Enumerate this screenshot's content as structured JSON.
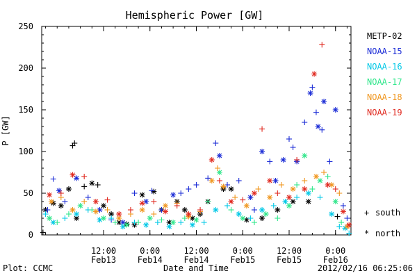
{
  "chart_data": {
    "type": "scatter",
    "title": "Hemispheric Power [GW]",
    "xlabel": "Date and Time",
    "ylabel": "P [GW]",
    "ylim": [
      0,
      250
    ],
    "xlim": [
      "2012-02-12 20:00",
      "2012-02-16 04:00"
    ],
    "y_ticks": [
      0,
      50,
      100,
      150,
      200,
      250
    ],
    "x_ticks": [
      {
        "time": "2012-02-13 12:00",
        "line1": "12:00",
        "line2": "Feb13"
      },
      {
        "time": "2012-02-14 00:00",
        "line1": "0:00",
        "line2": "Feb14"
      },
      {
        "time": "2012-02-14 12:00",
        "line1": "12:00",
        "line2": "Feb14"
      },
      {
        "time": "2012-02-15 00:00",
        "line1": "0:00",
        "line2": "Feb15"
      },
      {
        "time": "2012-02-15 12:00",
        "line1": "12:00",
        "line2": "Feb15"
      },
      {
        "time": "2012-02-16 00:00",
        "line1": "0:00",
        "line2": "Feb16"
      }
    ],
    "markers": {
      "plus": "south",
      "star": "north"
    },
    "legend_position": "right",
    "series": [
      {
        "name": "METP-02",
        "color": "#000000",
        "points": [
          [
            "2012-02-12 20:20",
            3,
            "plus"
          ],
          [
            "2012-02-12 21:00",
            30,
            "star"
          ],
          [
            "2012-02-12 23:00",
            38,
            "star"
          ],
          [
            "2012-02-13 01:00",
            35,
            "star"
          ],
          [
            "2012-02-13 03:00",
            55,
            "star"
          ],
          [
            "2012-02-13 04:00",
            107,
            "plus"
          ],
          [
            "2012-02-13 04:30",
            110,
            "plus"
          ],
          [
            "2012-02-13 05:00",
            20,
            "star"
          ],
          [
            "2012-02-13 07:00",
            58,
            "plus"
          ],
          [
            "2012-02-13 09:00",
            62,
            "star"
          ],
          [
            "2012-02-13 10:30",
            60,
            "plus"
          ],
          [
            "2012-02-13 12:00",
            35,
            "star"
          ],
          [
            "2012-02-13 14:00",
            25,
            "star"
          ],
          [
            "2012-02-13 16:00",
            15,
            "star"
          ],
          [
            "2012-02-13 18:00",
            13,
            "star"
          ],
          [
            "2012-02-13 20:00",
            12,
            "star"
          ],
          [
            "2012-02-13 22:00",
            48,
            "star"
          ],
          [
            "2012-02-14 01:00",
            52,
            "star"
          ],
          [
            "2012-02-14 03:00",
            30,
            "star"
          ],
          [
            "2012-02-14 05:00",
            15,
            "star"
          ],
          [
            "2012-02-14 07:00",
            40,
            "star"
          ],
          [
            "2012-02-14 09:00",
            30,
            "star"
          ],
          [
            "2012-02-14 11:00",
            20,
            "star"
          ],
          [
            "2012-02-14 13:00",
            25,
            "star"
          ],
          [
            "2012-02-14 15:00",
            40,
            "star"
          ],
          [
            "2012-02-14 19:00",
            55,
            "star"
          ],
          [
            "2012-02-14 21:00",
            55,
            "star"
          ],
          [
            "2012-02-15 01:00",
            18,
            "star"
          ],
          [
            "2012-02-15 05:00",
            20,
            "star"
          ],
          [
            "2012-02-15 09:00",
            30,
            "star"
          ],
          [
            "2012-02-15 13:00",
            40,
            "star"
          ],
          [
            "2012-02-15 17:00",
            40,
            "star"
          ],
          [
            "2012-02-16 00:30",
            22,
            "plus"
          ]
        ]
      },
      {
        "name": "NOAA-15",
        "color": "#1a2bd6",
        "points": [
          [
            "2012-02-12 21:30",
            30,
            "plus"
          ],
          [
            "2012-02-12 23:00",
            67,
            "plus"
          ],
          [
            "2012-02-13 00:30",
            53,
            "star"
          ],
          [
            "2012-02-13 02:00",
            40,
            "plus"
          ],
          [
            "2012-02-13 05:00",
            68,
            "star"
          ],
          [
            "2012-02-13 08:00",
            45,
            "plus"
          ],
          [
            "2012-02-13 11:00",
            30,
            "star"
          ],
          [
            "2012-02-13 14:00",
            18,
            "plus"
          ],
          [
            "2012-02-13 17:00",
            15,
            "star"
          ],
          [
            "2012-02-13 20:00",
            50,
            "plus"
          ],
          [
            "2012-02-13 23:00",
            40,
            "star"
          ],
          [
            "2012-02-14 00:30",
            53,
            "plus"
          ],
          [
            "2012-02-14 03:00",
            30,
            "plus"
          ],
          [
            "2012-02-14 06:00",
            48,
            "star"
          ],
          [
            "2012-02-14 08:00",
            50,
            "plus"
          ],
          [
            "2012-02-14 10:00",
            55,
            "plus"
          ],
          [
            "2012-02-14 12:00",
            60,
            "plus"
          ],
          [
            "2012-02-14 15:00",
            68,
            "plus"
          ],
          [
            "2012-02-14 17:00",
            110,
            "plus"
          ],
          [
            "2012-02-14 18:00",
            95,
            "star"
          ],
          [
            "2012-02-14 20:00",
            60,
            "plus"
          ],
          [
            "2012-02-14 23:00",
            65,
            "plus"
          ],
          [
            "2012-02-15 02:00",
            45,
            "star"
          ],
          [
            "2012-02-15 03:00",
            30,
            "plus"
          ],
          [
            "2012-02-15 05:00",
            100,
            "star"
          ],
          [
            "2012-02-15 07:00",
            88,
            "plus"
          ],
          [
            "2012-02-15 08:30",
            65,
            "star"
          ],
          [
            "2012-02-15 10:30",
            90,
            "star"
          ],
          [
            "2012-02-15 12:00",
            115,
            "plus"
          ],
          [
            "2012-02-15 13:00",
            105,
            "plus"
          ],
          [
            "2012-02-15 14:00",
            88,
            "star"
          ],
          [
            "2012-02-15 16:00",
            135,
            "plus"
          ],
          [
            "2012-02-15 17:30",
            170,
            "star"
          ],
          [
            "2012-02-15 18:00",
            177,
            "plus"
          ],
          [
            "2012-02-15 19:00",
            147,
            "plus"
          ],
          [
            "2012-02-15 19:30",
            130,
            "star"
          ],
          [
            "2012-02-15 20:30",
            126,
            "plus"
          ],
          [
            "2012-02-15 21:00",
            160,
            "star"
          ],
          [
            "2012-02-15 22:30",
            88,
            "plus"
          ],
          [
            "2012-02-16 00:00",
            150,
            "star"
          ],
          [
            "2012-02-16 02:00",
            35,
            "plus"
          ],
          [
            "2012-02-16 03:00",
            20,
            "plus"
          ]
        ]
      },
      {
        "name": "NOAA-16",
        "color": "#00c8e6",
        "points": [
          [
            "2012-02-12 21:00",
            25,
            "plus"
          ],
          [
            "2012-02-12 23:00",
            15,
            "star"
          ],
          [
            "2012-02-13 02:00",
            20,
            "plus"
          ],
          [
            "2012-02-13 05:00",
            25,
            "star"
          ],
          [
            "2012-02-13 08:00",
            30,
            "plus"
          ],
          [
            "2012-02-13 11:00",
            18,
            "star"
          ],
          [
            "2012-02-13 14:00",
            20,
            "plus"
          ],
          [
            "2012-02-13 17:00",
            10,
            "star"
          ],
          [
            "2012-02-13 20:00",
            15,
            "plus"
          ],
          [
            "2012-02-13 23:00",
            12,
            "star"
          ],
          [
            "2012-02-14 02:00",
            15,
            "plus"
          ],
          [
            "2012-02-14 05:00",
            10,
            "star"
          ],
          [
            "2012-02-14 08:00",
            15,
            "plus"
          ],
          [
            "2012-02-14 11:00",
            12,
            "star"
          ],
          [
            "2012-02-14 14:00",
            15,
            "plus"
          ],
          [
            "2012-02-14 17:00",
            30,
            "star"
          ],
          [
            "2012-02-14 20:00",
            35,
            "plus"
          ],
          [
            "2012-02-14 23:00",
            25,
            "star"
          ],
          [
            "2012-02-15 02:00",
            20,
            "plus"
          ],
          [
            "2012-02-15 05:00",
            30,
            "star"
          ],
          [
            "2012-02-15 08:00",
            35,
            "plus"
          ],
          [
            "2012-02-15 11:00",
            40,
            "star"
          ],
          [
            "2012-02-15 14:00",
            45,
            "plus"
          ],
          [
            "2012-02-15 17:00",
            50,
            "star"
          ],
          [
            "2012-02-15 20:00",
            45,
            "plus"
          ],
          [
            "2012-02-15 23:00",
            25,
            "star"
          ],
          [
            "2012-02-16 01:00",
            10,
            "plus"
          ],
          [
            "2012-02-16 02:30",
            8,
            "star"
          ],
          [
            "2012-02-16 03:30",
            2,
            "plus"
          ]
        ]
      },
      {
        "name": "NOAA-17",
        "color": "#2ee68a",
        "points": [
          [
            "2012-02-12 22:00",
            20,
            "star"
          ],
          [
            "2012-02-13 00:00",
            15,
            "plus"
          ],
          [
            "2012-02-13 03:00",
            25,
            "plus"
          ],
          [
            "2012-02-13 06:00",
            35,
            "star"
          ],
          [
            "2012-02-13 09:00",
            30,
            "plus"
          ],
          [
            "2012-02-13 12:00",
            20,
            "star"
          ],
          [
            "2012-02-13 15:00",
            15,
            "plus"
          ],
          [
            "2012-02-13 18:00",
            12,
            "star"
          ],
          [
            "2012-02-13 21:00",
            15,
            "plus"
          ],
          [
            "2012-02-14 00:00",
            20,
            "star"
          ],
          [
            "2012-02-14 03:00",
            18,
            "plus"
          ],
          [
            "2012-02-14 06:00",
            15,
            "star"
          ],
          [
            "2012-02-14 09:00",
            20,
            "plus"
          ],
          [
            "2012-02-14 12:00",
            18,
            "star"
          ],
          [
            "2012-02-14 15:00",
            40,
            "plus"
          ],
          [
            "2012-02-14 18:00",
            75,
            "star"
          ],
          [
            "2012-02-14 21:00",
            30,
            "plus"
          ],
          [
            "2012-02-15 00:00",
            20,
            "star"
          ],
          [
            "2012-02-15 03:00",
            15,
            "plus"
          ],
          [
            "2012-02-15 06:00",
            25,
            "star"
          ],
          [
            "2012-02-15 09:00",
            20,
            "plus"
          ],
          [
            "2012-02-15 12:00",
            35,
            "star"
          ],
          [
            "2012-02-15 14:00",
            60,
            "plus"
          ],
          [
            "2012-02-15 16:00",
            95,
            "star"
          ],
          [
            "2012-02-15 18:00",
            55,
            "plus"
          ],
          [
            "2012-02-15 20:00",
            65,
            "star"
          ],
          [
            "2012-02-15 22:00",
            70,
            "plus"
          ],
          [
            "2012-02-16 00:00",
            40,
            "star"
          ],
          [
            "2012-02-16 01:30",
            15,
            "plus"
          ]
        ]
      },
      {
        "name": "NOAA-18",
        "color": "#f0961e",
        "points": [
          [
            "2012-02-12 22:30",
            40,
            "star"
          ],
          [
            "2012-02-13 01:00",
            45,
            "plus"
          ],
          [
            "2012-02-13 04:00",
            30,
            "star"
          ],
          [
            "2012-02-13 07:00",
            40,
            "plus"
          ],
          [
            "2012-02-13 10:00",
            28,
            "star"
          ],
          [
            "2012-02-13 13:00",
            30,
            "plus"
          ],
          [
            "2012-02-13 16:00",
            20,
            "star"
          ],
          [
            "2012-02-13 19:00",
            25,
            "plus"
          ],
          [
            "2012-02-13 22:00",
            30,
            "star"
          ],
          [
            "2012-02-14 01:00",
            25,
            "plus"
          ],
          [
            "2012-02-14 04:00",
            35,
            "star"
          ],
          [
            "2012-02-14 07:00",
            38,
            "plus"
          ],
          [
            "2012-02-14 10:00",
            22,
            "star"
          ],
          [
            "2012-02-14 13:00",
            28,
            "plus"
          ],
          [
            "2012-02-14 16:00",
            65,
            "star"
          ],
          [
            "2012-02-14 17:30",
            80,
            "plus"
          ],
          [
            "2012-02-14 19:00",
            58,
            "star"
          ],
          [
            "2012-02-14 22:00",
            45,
            "plus"
          ],
          [
            "2012-02-15 01:00",
            35,
            "star"
          ],
          [
            "2012-02-15 04:00",
            55,
            "plus"
          ],
          [
            "2012-02-15 07:00",
            45,
            "star"
          ],
          [
            "2012-02-15 10:00",
            60,
            "plus"
          ],
          [
            "2012-02-15 13:00",
            55,
            "star"
          ],
          [
            "2012-02-15 16:00",
            65,
            "plus"
          ],
          [
            "2012-02-15 19:00",
            70,
            "star"
          ],
          [
            "2012-02-15 21:00",
            75,
            "plus"
          ],
          [
            "2012-02-15 23:00",
            60,
            "star"
          ],
          [
            "2012-02-16 01:00",
            50,
            "plus"
          ],
          [
            "2012-02-16 03:00",
            10,
            "star"
          ]
        ]
      },
      {
        "name": "NOAA-19",
        "color": "#e0281e",
        "points": [
          [
            "2012-02-12 22:00",
            48,
            "star"
          ],
          [
            "2012-02-13 01:00",
            50,
            "plus"
          ],
          [
            "2012-02-13 04:00",
            72,
            "star"
          ],
          [
            "2012-02-13 07:00",
            70,
            "plus"
          ],
          [
            "2012-02-13 10:00",
            40,
            "star"
          ],
          [
            "2012-02-13 13:00",
            42,
            "plus"
          ],
          [
            "2012-02-13 16:00",
            25,
            "star"
          ],
          [
            "2012-02-13 19:00",
            30,
            "plus"
          ],
          [
            "2012-02-13 22:00",
            38,
            "star"
          ],
          [
            "2012-02-14 01:00",
            40,
            "plus"
          ],
          [
            "2012-02-14 04:00",
            28,
            "star"
          ],
          [
            "2012-02-14 07:00",
            35,
            "plus"
          ],
          [
            "2012-02-14 10:00",
            25,
            "star"
          ],
          [
            "2012-02-14 13:00",
            30,
            "plus"
          ],
          [
            "2012-02-14 16:00",
            90,
            "star"
          ],
          [
            "2012-02-14 18:00",
            65,
            "plus"
          ],
          [
            "2012-02-14 21:00",
            40,
            "star"
          ],
          [
            "2012-02-15 00:00",
            42,
            "plus"
          ],
          [
            "2012-02-15 03:00",
            50,
            "star"
          ],
          [
            "2012-02-15 05:00",
            127,
            "plus"
          ],
          [
            "2012-02-15 07:00",
            65,
            "star"
          ],
          [
            "2012-02-15 09:00",
            50,
            "plus"
          ],
          [
            "2012-02-15 12:00",
            45,
            "star"
          ],
          [
            "2012-02-15 14:00",
            90,
            "plus"
          ],
          [
            "2012-02-15 16:00",
            55,
            "star"
          ],
          [
            "2012-02-15 18:30",
            193,
            "star"
          ],
          [
            "2012-02-15 20:30",
            228,
            "plus"
          ],
          [
            "2012-02-15 22:00",
            60,
            "star"
          ],
          [
            "2012-02-16 00:00",
            55,
            "plus"
          ],
          [
            "2012-02-16 02:00",
            28,
            "star"
          ],
          [
            "2012-02-16 03:30",
            12,
            "star"
          ]
        ]
      }
    ]
  },
  "footer": {
    "left": "Plot: CCMC",
    "right": "2012/02/16 06:25:06"
  },
  "legend_markers": [
    {
      "symbol": "+",
      "label": "south"
    },
    {
      "symbol": "*",
      "label": "north"
    }
  ]
}
